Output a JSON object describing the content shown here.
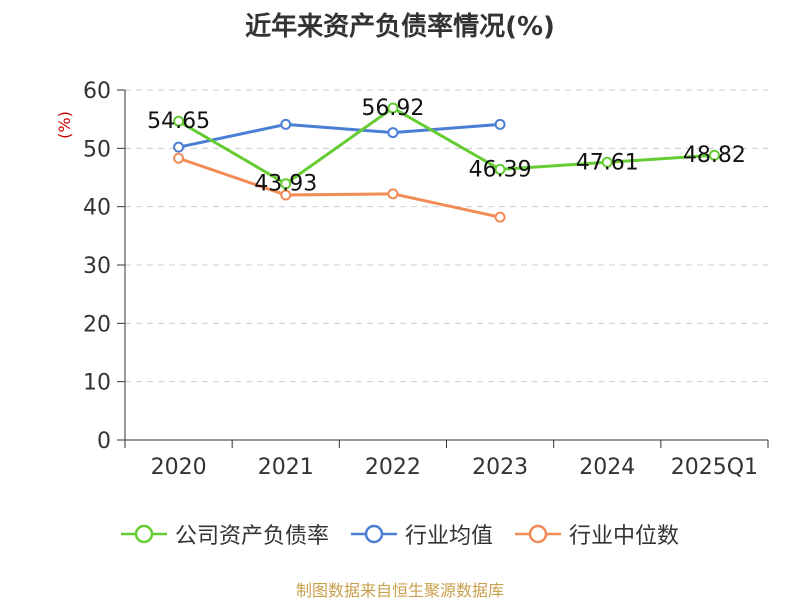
{
  "title": "近年来资产负债率情况(%)",
  "footer": "制图数据来自恒生聚源数据库",
  "chart_data": {
    "type": "line",
    "title": "近年来资产负债率情况(%)",
    "ylabel": "(%)",
    "ylim": [
      0,
      60
    ],
    "yticks": [
      0,
      10,
      20,
      30,
      40,
      50,
      60
    ],
    "categories": [
      "2020",
      "2021",
      "2022",
      "2023",
      "2024",
      "2025Q1"
    ],
    "grid": true,
    "legend_position": "bottom",
    "series": [
      {
        "name": "公司资产负债率",
        "color": "#66cc33",
        "values": [
          54.65,
          43.93,
          56.92,
          46.39,
          47.61,
          48.82
        ],
        "labels": true
      },
      {
        "name": "行业均值",
        "color": "#4a7fd4",
        "values": [
          50.2,
          54.1,
          52.7,
          54.1,
          null,
          null
        ],
        "labels": false
      },
      {
        "name": "行业中位数",
        "color": "#f28b55",
        "values": [
          48.3,
          42.0,
          42.2,
          38.2,
          null,
          null
        ],
        "labels": false
      }
    ]
  }
}
